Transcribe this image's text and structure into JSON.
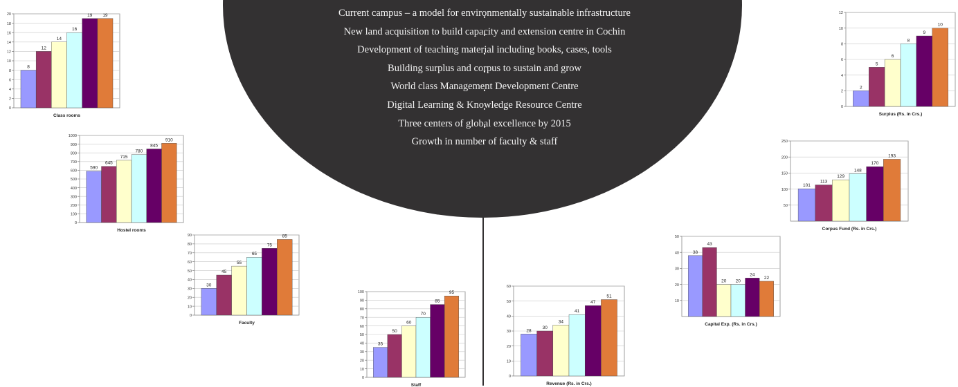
{
  "bullets": [
    "Current campus – a model for environmentally sustainable infrastructure",
    "New land acquisition to build capacity and extension centre in Cochin",
    "Development of teaching material including books, cases, tools",
    "Building surplus and corpus to sustain and grow",
    "World class Management Development Centre",
    "Digital Learning & Knowledge Resource Centre",
    "Three centers of global excellence by 2015",
    "Growth in number of faculty & staff"
  ],
  "colors": {
    "circle": "#333132",
    "bars": [
      "#9999ff",
      "#993366",
      "#ffffcc",
      "#ccffff",
      "#660066",
      "#e07b39"
    ]
  },
  "chart_data": [
    {
      "id": "class-rooms",
      "type": "bar",
      "title": "Class rooms",
      "values": [
        8,
        12,
        14,
        16,
        19,
        19
      ],
      "data_labels": [
        "8",
        "12",
        "14",
        "16",
        "19",
        "19"
      ],
      "yticks": [
        "0",
        "2",
        "4",
        "6",
        "8",
        "10",
        "12",
        "14",
        "16",
        "18",
        "20"
      ],
      "ylim": [
        0,
        20
      ],
      "grid": true
    },
    {
      "id": "hostel-rooms",
      "type": "bar",
      "title": "Hostel rooms",
      "values": [
        590,
        645,
        715,
        780,
        845,
        910
      ],
      "data_labels": [
        "590",
        "645",
        "715",
        "780",
        "845",
        "910"
      ],
      "yticks": [
        "0",
        "100",
        "200",
        "300",
        "400",
        "500",
        "600",
        "700",
        "800",
        "900",
        "1000"
      ],
      "ylim": [
        0,
        1000
      ],
      "grid": true
    },
    {
      "id": "faculty",
      "type": "bar",
      "title": "Faculty",
      "values": [
        30,
        45,
        55,
        65,
        75,
        85
      ],
      "data_labels": [
        "30",
        "45",
        "55",
        "65",
        "75",
        "85"
      ],
      "yticks": [
        "0",
        "10",
        "20",
        "30",
        "40",
        "50",
        "60",
        "70",
        "80",
        "90"
      ],
      "ylim": [
        0,
        90
      ],
      "grid": true
    },
    {
      "id": "staff",
      "type": "bar",
      "title": "Staff",
      "values": [
        35,
        50,
        60,
        70,
        85,
        95
      ],
      "data_labels": [
        "35",
        "50",
        "60",
        "70",
        "85",
        "95"
      ],
      "yticks": [
        "0",
        "10",
        "20",
        "30",
        "40",
        "50",
        "60",
        "70",
        "80",
        "90",
        "100"
      ],
      "ylim": [
        0,
        100
      ],
      "grid": true
    },
    {
      "id": "revenue",
      "type": "bar",
      "title": "Revenue (Rs. in Crs.)",
      "values": [
        28,
        30,
        34,
        41,
        47,
        51
      ],
      "data_labels": [
        "28",
        "30",
        "34",
        "41",
        "47",
        "51"
      ],
      "yticks": [
        "0",
        "10",
        "20",
        "30",
        "40",
        "50",
        "60"
      ],
      "ylim": [
        0,
        60
      ],
      "grid": true
    },
    {
      "id": "capital-exp",
      "type": "bar",
      "title": "Capital Exp. (Rs. in Crs.)",
      "values": [
        38,
        43,
        20,
        20,
        24,
        22
      ],
      "data_labels": [
        "38",
        "43",
        "20",
        "20",
        "24",
        "22"
      ],
      "yticks": [
        "10",
        "20",
        "30",
        "40",
        "50"
      ],
      "ylim": [
        0,
        50
      ],
      "grid": true
    },
    {
      "id": "corpus-fund",
      "type": "bar",
      "title": "Corpus Fund (Rs. in Crs.)",
      "values": [
        101,
        113,
        129,
        148,
        170,
        193
      ],
      "data_labels": [
        "101",
        "113",
        "129",
        "148",
        "170",
        "193"
      ],
      "yticks": [
        "50",
        "100",
        "150",
        "200",
        "250"
      ],
      "ylim": [
        0,
        250
      ],
      "grid": true
    },
    {
      "id": "surplus",
      "type": "bar",
      "title": "Surplus (Rs. in Crs.)",
      "values": [
        2,
        5,
        6,
        8,
        9,
        10
      ],
      "data_labels": [
        "2",
        "5",
        "6",
        "8",
        "9",
        "10"
      ],
      "yticks": [
        "0",
        "2",
        "4",
        "6",
        "8",
        "10",
        "12"
      ],
      "ylim": [
        0,
        12
      ],
      "grid": true
    }
  ]
}
